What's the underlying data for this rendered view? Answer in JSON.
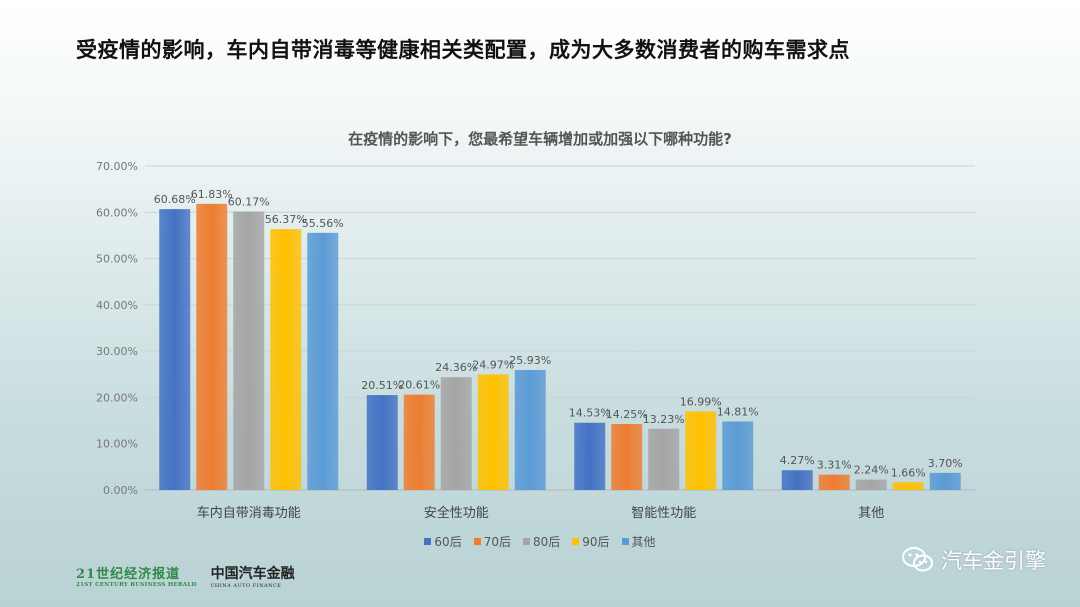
{
  "slide": {
    "title": "受疫情的影响，车内自带消毒等健康相关类配置，成为大多数消费者的购车需求点"
  },
  "chart_data": {
    "type": "bar",
    "title": "在疫情的影响下，您最希望车辆增加或加强以下哪种功能?",
    "categories": [
      "车内自带消毒功能",
      "安全性功能",
      "智能性功能",
      "其他"
    ],
    "series": [
      {
        "name": "60后",
        "color": "#4472c4",
        "values": [
          60.68,
          20.51,
          14.53,
          4.27
        ],
        "labels": [
          "60.68%",
          "20.51%",
          "14.53%",
          "4.27%"
        ]
      },
      {
        "name": "70后",
        "color": "#ed7d31",
        "values": [
          61.83,
          20.61,
          14.25,
          3.31
        ],
        "labels": [
          "61.83%",
          "20.61%",
          "14.25%",
          "3.31%"
        ]
      },
      {
        "name": "80后",
        "color": "#a5a5a5",
        "values": [
          60.17,
          24.36,
          13.23,
          2.24
        ],
        "labels": [
          "60.17%",
          "24.36%",
          "13.23%",
          "2.24%"
        ]
      },
      {
        "name": "90后",
        "color": "#ffc000",
        "values": [
          56.37,
          24.97,
          16.99,
          1.66
        ],
        "labels": [
          "56.37%",
          "24.97%",
          "16.99%",
          "1.66%"
        ]
      },
      {
        "name": "其他",
        "color": "#5b9bd5",
        "values": [
          55.56,
          25.93,
          14.81,
          3.7
        ],
        "labels": [
          "55.56%",
          "25.93%",
          "14.81%",
          "3.70%"
        ]
      }
    ],
    "ylim": [
      0,
      70
    ],
    "yticks": [
      "0.00%",
      "10.00%",
      "20.00%",
      "30.00%",
      "40.00%",
      "50.00%",
      "60.00%",
      "70.00%"
    ],
    "grid": true,
    "legend_position": "bottom"
  },
  "logos": {
    "logo1_main": "21世纪经济报道",
    "logo1_sub": "21ST CENTURY BUSINESS HERALD",
    "logo2_main": "中国汽车金融",
    "logo2_sub": "CHINA AUTO FINANCE"
  },
  "watermark": {
    "text": "汽车金引擎",
    "icon": "wechat-icon"
  }
}
